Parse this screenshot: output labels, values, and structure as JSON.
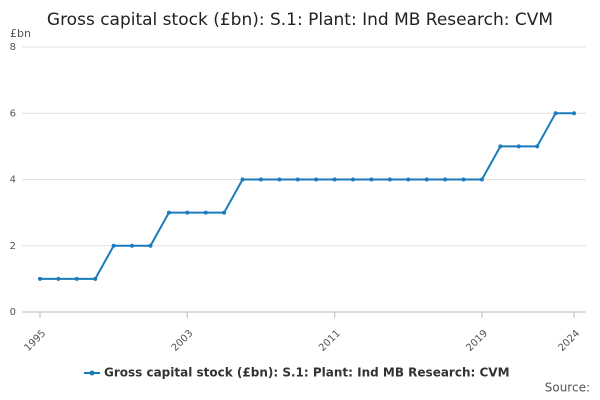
{
  "chart_data": {
    "type": "line",
    "title": "Gross capital stock (£bn): S.1: Plant: Ind MB Research: CVM",
    "y_label": "£bn",
    "source": "Source:",
    "x": [
      1995,
      1996,
      1997,
      1998,
      1999,
      2000,
      2001,
      2002,
      2003,
      2004,
      2005,
      2006,
      2007,
      2008,
      2009,
      2010,
      2011,
      2012,
      2013,
      2014,
      2015,
      2016,
      2017,
      2018,
      2019,
      2020,
      2021,
      2022,
      2023,
      2024
    ],
    "series": [
      {
        "name": "Gross capital stock (£bn): S.1: Plant: Ind MB Research: CVM",
        "color": "#1b7bbd",
        "values": [
          1,
          1,
          1,
          1,
          2,
          2,
          2,
          3,
          3,
          3,
          3,
          4,
          4,
          4,
          4,
          4,
          4,
          4,
          4,
          4,
          4,
          4,
          4,
          4,
          4,
          5,
          5,
          5,
          6,
          6
        ]
      }
    ],
    "xlim": [
      1995,
      2024
    ],
    "xticks": [
      1995,
      2003,
      2011,
      2019,
      2024
    ],
    "ylim": [
      0,
      8
    ],
    "yticks": [
      0,
      2,
      4,
      6,
      8
    ],
    "grid": true
  }
}
